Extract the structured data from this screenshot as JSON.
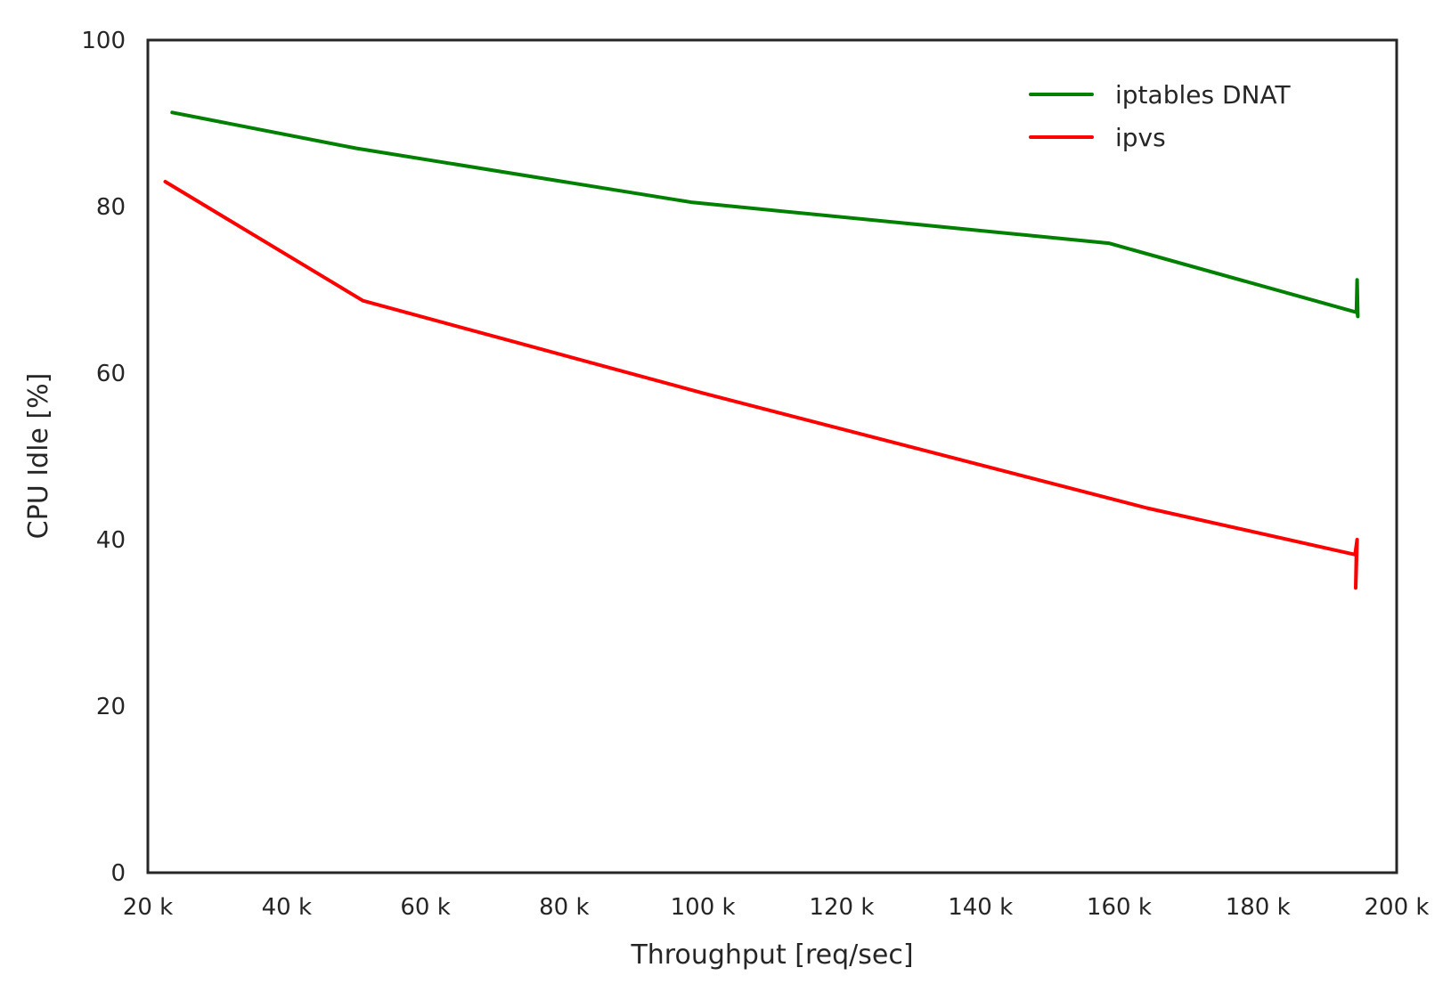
{
  "chart_data": {
    "type": "line",
    "title": "",
    "xlabel": "Throughput [req/sec]",
    "ylabel": "CPU Idle [%]",
    "xlim": [
      20000,
      200000
    ],
    "ylim": [
      0,
      100
    ],
    "x_ticks": [
      20000,
      40000,
      60000,
      80000,
      100000,
      120000,
      140000,
      160000,
      180000,
      200000
    ],
    "x_tick_labels": [
      "20 k",
      "40 k",
      "60 k",
      "80 k",
      "100 k",
      "120 k",
      "140 k",
      "160 k",
      "180 k",
      "200 k"
    ],
    "y_ticks": [
      0,
      20,
      40,
      60,
      80,
      100
    ],
    "y_tick_labels": [
      "0",
      "20",
      "40",
      "60",
      "80",
      "100"
    ],
    "grid": false,
    "legend_position": "top-right",
    "series": [
      {
        "name": "iptables DNAT",
        "color": "#008000",
        "points": [
          [
            23500,
            91.3
          ],
          [
            50000,
            87.0
          ],
          [
            98500,
            80.5
          ],
          [
            158500,
            75.6
          ],
          [
            194200,
            67.3
          ],
          [
            194300,
            71.2
          ],
          [
            194400,
            66.8
          ],
          [
            194300,
            67.5
          ]
        ]
      },
      {
        "name": "ipvs",
        "color": "#ff0000",
        "points": [
          [
            22500,
            83.0
          ],
          [
            51000,
            68.7
          ],
          [
            100000,
            57.6
          ],
          [
            164000,
            43.8
          ],
          [
            194000,
            38.2
          ],
          [
            194300,
            40.0
          ],
          [
            194100,
            34.2
          ],
          [
            194200,
            38.5
          ]
        ]
      }
    ]
  }
}
